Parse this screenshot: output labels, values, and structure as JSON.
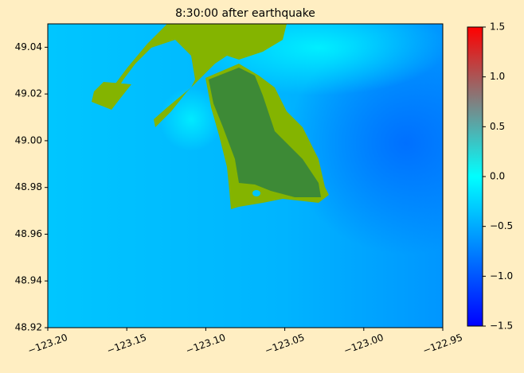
{
  "chart_data": {
    "type": "heatmap",
    "title": "8:30:00 after earthquake",
    "xlim": [
      -123.2,
      -122.95
    ],
    "xticks": [
      {
        "value": -123.2,
        "label": "−123.20"
      },
      {
        "value": -123.15,
        "label": "−123.15"
      },
      {
        "value": -123.1,
        "label": "−123.10"
      },
      {
        "value": -123.05,
        "label": "−123.05"
      },
      {
        "value": -123.0,
        "label": "−123.00"
      },
      {
        "value": -122.95,
        "label": "−122.95"
      }
    ],
    "ylim": [
      48.92,
      49.05
    ],
    "yticks": [
      48.92,
      48.94,
      48.96,
      48.98,
      {
        "value": 49.0,
        "label": "49.00"
      },
      49.02,
      49.04
    ],
    "colorbar": {
      "clim": [
        -1.5,
        1.5
      ],
      "ticks": [
        {
          "value": -1.5,
          "label": "−1.5"
        },
        {
          "value": -1.0,
          "label": "−1.0"
        },
        {
          "value": -0.5,
          "label": "−0.5"
        },
        {
          "value": 0,
          "label": "0.0"
        },
        0.5,
        {
          "value": 1.0,
          "label": "1.0"
        },
        1.5
      ],
      "colors": [
        "#0000ff",
        "#0080ff",
        "#00ffff",
        "#808080",
        "#ff0000"
      ]
    }
  }
}
